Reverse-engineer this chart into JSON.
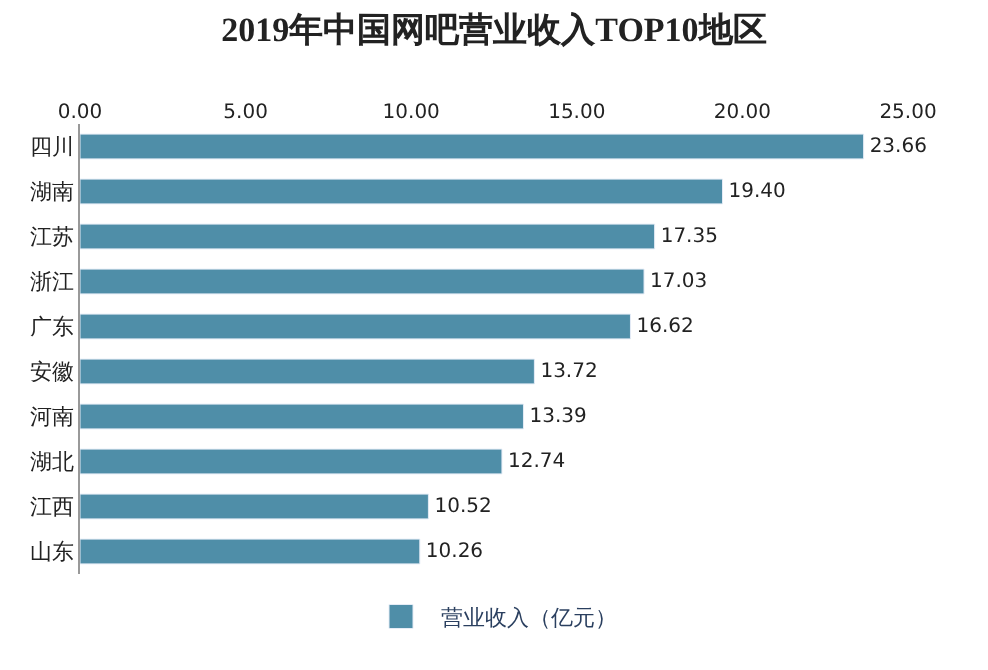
{
  "chart_data": {
    "type": "bar",
    "title": "2019年中国网吧营业收入TOP10地区",
    "orientation": "horizontal",
    "categories": [
      "四川",
      "湖南",
      "江苏",
      "浙江",
      "广东",
      "安徽",
      "河南",
      "湖北",
      "江西",
      "山东"
    ],
    "series": [
      {
        "name": "营业收入（亿元）",
        "color": "#4f8ea8",
        "values": [
          23.66,
          19.4,
          17.35,
          17.03,
          16.62,
          13.72,
          13.39,
          12.74,
          10.52,
          10.26
        ],
        "value_labels": [
          "23.66",
          "19.40",
          "17.35",
          "17.03",
          "16.62",
          "13.72",
          "13.39",
          "12.74",
          "10.52",
          "10.26"
        ]
      }
    ],
    "xlim": [
      0,
      25
    ],
    "xticks": [
      {
        "value": 0,
        "label": "0.00"
      },
      {
        "value": 5,
        "label": "5.00"
      },
      {
        "value": 10,
        "label": "10.00"
      },
      {
        "value": 15,
        "label": "15.00"
      },
      {
        "value": 20,
        "label": "20.00"
      },
      {
        "value": 25,
        "label": "25.00"
      }
    ],
    "legend": "bottom"
  }
}
